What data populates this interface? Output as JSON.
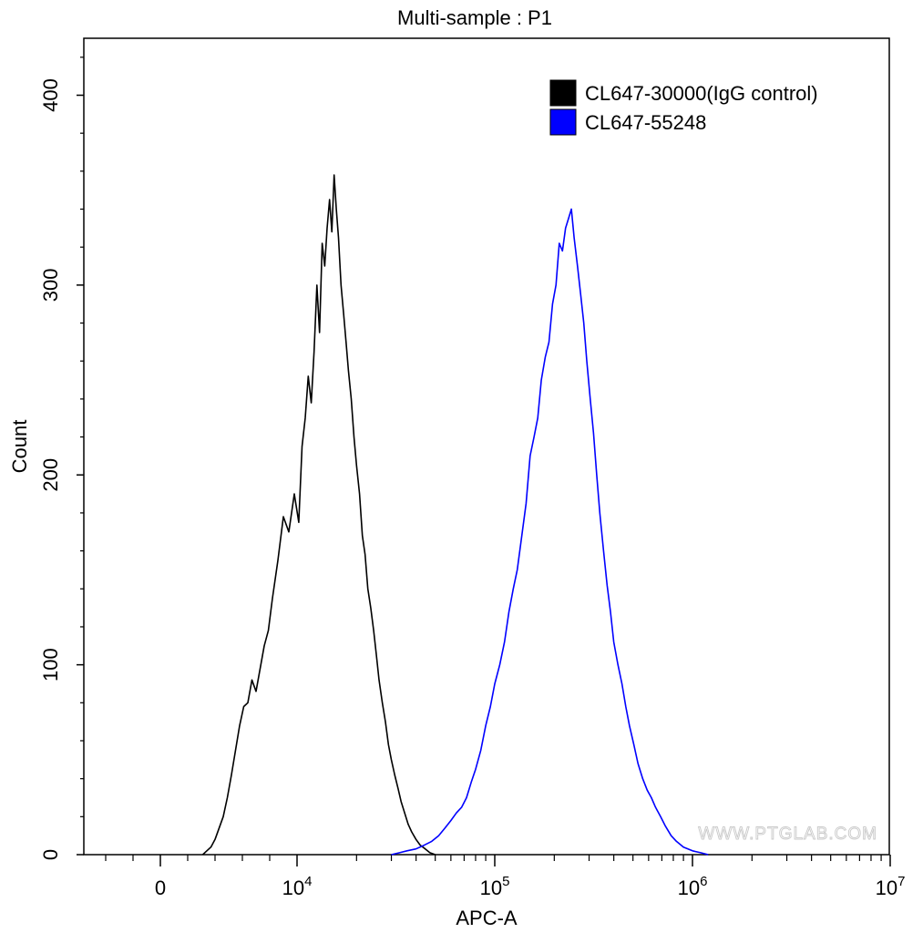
{
  "chart_data": {
    "type": "line",
    "title": "Multi-sample : P1",
    "xlabel": "APC-A",
    "ylabel": "Count",
    "ylim": [
      0,
      430
    ],
    "yticks": [
      0,
      100,
      200,
      300,
      400
    ],
    "ytick_labels": [
      "0",
      "100",
      "200",
      "300",
      "400"
    ],
    "x_scale": "biexponential",
    "xticks": [
      {
        "value": 0,
        "base": "0",
        "exp": ""
      },
      {
        "value": 10000,
        "base": "10",
        "exp": "4"
      },
      {
        "value": 100000,
        "base": "10",
        "exp": "5"
      },
      {
        "value": 1000000,
        "base": "10",
        "exp": "6"
      },
      {
        "value": 10000000,
        "base": "10",
        "exp": "7"
      }
    ],
    "grid": false,
    "legend_position": "top-right",
    "watermark": "WWW.PTGLAB.COM",
    "series": [
      {
        "name": "CL647-30000(IgG control)",
        "color": "#000000",
        "x": [
          3100,
          3400,
          3700,
          4000,
          4300,
          4600,
          4900,
          5200,
          5500,
          5800,
          6100,
          6400,
          6700,
          7000,
          7300,
          7600,
          7900,
          8200,
          8600,
          9000,
          9400,
          9800,
          10200,
          10600,
          11000,
          11400,
          11800,
          12200,
          12600,
          13000,
          13400,
          13800,
          14200,
          14600,
          15000,
          15400,
          15800,
          16200,
          16700,
          17200,
          17700,
          18200,
          18800,
          19400,
          20000,
          20700,
          21400,
          22100,
          22800,
          23600,
          24400,
          25200,
          26000,
          27000,
          28000,
          29000,
          30000,
          31200,
          32400,
          33600,
          35000,
          36500,
          38000,
          40000,
          42000,
          44500,
          47000,
          50000
        ],
        "y": [
          0,
          2,
          4,
          8,
          14,
          20,
          30,
          42,
          55,
          68,
          78,
          80,
          92,
          86,
          98,
          110,
          118,
          135,
          155,
          178,
          170,
          190,
          175,
          215,
          230,
          252,
          238,
          265,
          300,
          275,
          322,
          310,
          330,
          345,
          328,
          358,
          340,
          325,
          300,
          285,
          270,
          255,
          240,
          220,
          205,
          190,
          168,
          158,
          140,
          130,
          118,
          105,
          92,
          80,
          70,
          58,
          50,
          42,
          35,
          28,
          22,
          16,
          12,
          8,
          5,
          3,
          1,
          0
        ]
      },
      {
        "name": "CL647-55248",
        "color": "#0000ff",
        "x": [
          30000,
          33000,
          36000,
          40000,
          44000,
          48000,
          52000,
          56000,
          60000,
          64000,
          68000,
          72000,
          76000,
          80000,
          85000,
          90000,
          95000,
          100000,
          106000,
          112000,
          118000,
          124000,
          130000,
          137000,
          144000,
          151000,
          158000,
          165000,
          172000,
          180000,
          188000,
          196000,
          204000,
          212000,
          220000,
          228000,
          236000,
          244000,
          252000,
          262000,
          272000,
          282000,
          292000,
          304000,
          316000,
          328000,
          340000,
          355000,
          370000,
          385000,
          400000,
          420000,
          440000,
          460000,
          480000,
          505000,
          530000,
          560000,
          590000,
          620000,
          650000,
          690000,
          730000,
          780000,
          830000,
          900000,
          1000000,
          1100000,
          1200000
        ],
        "y": [
          0,
          1,
          2,
          3,
          5,
          7,
          10,
          14,
          18,
          22,
          25,
          30,
          38,
          45,
          55,
          68,
          78,
          90,
          100,
          112,
          128,
          140,
          150,
          168,
          185,
          210,
          220,
          230,
          250,
          262,
          270,
          290,
          300,
          322,
          318,
          330,
          335,
          340,
          325,
          310,
          295,
          280,
          260,
          240,
          222,
          200,
          180,
          160,
          142,
          128,
          112,
          100,
          90,
          78,
          68,
          58,
          48,
          40,
          34,
          30,
          25,
          20,
          15,
          10,
          7,
          4,
          2,
          1,
          0
        ]
      }
    ]
  }
}
